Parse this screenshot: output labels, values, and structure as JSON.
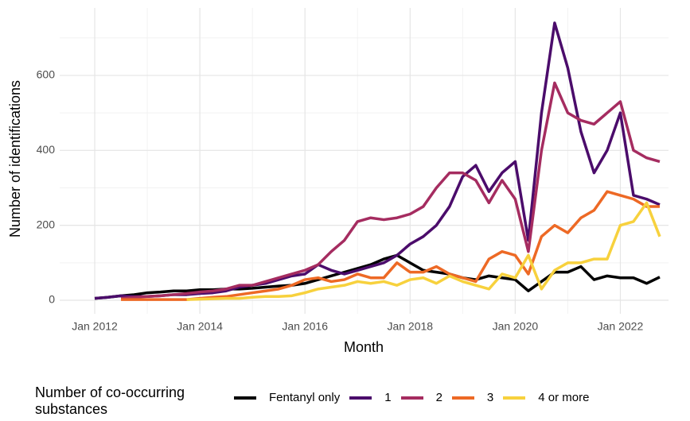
{
  "chart_data": {
    "type": "line",
    "xlabel": "Month",
    "ylabel": "Number of identifications",
    "legend_title": "Number of co-occurring substances",
    "legend": "bottom",
    "grid": true,
    "x": [
      "2012-01",
      "2012-04",
      "2012-07",
      "2012-10",
      "2013-01",
      "2013-04",
      "2013-07",
      "2013-10",
      "2014-01",
      "2014-04",
      "2014-07",
      "2014-10",
      "2015-01",
      "2015-04",
      "2015-07",
      "2015-10",
      "2016-01",
      "2016-04",
      "2016-07",
      "2016-10",
      "2017-01",
      "2017-04",
      "2017-07",
      "2017-10",
      "2018-01",
      "2018-04",
      "2018-07",
      "2018-10",
      "2019-01",
      "2019-04",
      "2019-07",
      "2019-10",
      "2020-01",
      "2020-04",
      "2020-07",
      "2020-10",
      "2021-01",
      "2021-04",
      "2021-07",
      "2021-10",
      "2022-01",
      "2022-04",
      "2022-07",
      "2022-10"
    ],
    "xlim": [
      "2011-05",
      "2022-12"
    ],
    "xticks": [
      {
        "value": "2012-01",
        "label": "Jan 2012"
      },
      {
        "value": "2014-01",
        "label": "Jan 2014"
      },
      {
        "value": "2016-01",
        "label": "Jan 2016"
      },
      {
        "value": "2018-01",
        "label": "Jan 2018"
      },
      {
        "value": "2020-01",
        "label": "Jan 2020"
      },
      {
        "value": "2022-01",
        "label": "Jan 2022"
      }
    ],
    "ylim": [
      -36,
      780
    ],
    "yticks": [
      0,
      200,
      400,
      600
    ],
    "series": [
      {
        "name": "Fentanyl only",
        "color": "#000000",
        "values": [
          5,
          8,
          12,
          15,
          20,
          22,
          25,
          25,
          28,
          28,
          30,
          30,
          32,
          35,
          38,
          40,
          45,
          55,
          65,
          75,
          85,
          95,
          110,
          120,
          100,
          80,
          75,
          70,
          60,
          55,
          65,
          60,
          55,
          25,
          50,
          75,
          75,
          90,
          55,
          65,
          60,
          60,
          45,
          62
        ]
      },
      {
        "name": "1",
        "color": "#4b0c6b",
        "values": [
          5,
          8,
          12,
          10,
          10,
          12,
          15,
          15,
          18,
          20,
          25,
          35,
          40,
          45,
          55,
          65,
          70,
          95,
          80,
          70,
          80,
          90,
          100,
          120,
          150,
          170,
          200,
          250,
          330,
          360,
          290,
          340,
          370,
          160,
          500,
          740,
          620,
          450,
          340,
          400,
          500,
          280,
          270,
          255
        ]
      },
      {
        "name": "2",
        "color": "#a52c60",
        "values": [
          null,
          null,
          5,
          8,
          10,
          12,
          15,
          18,
          22,
          25,
          30,
          40,
          40,
          50,
          60,
          70,
          80,
          95,
          130,
          160,
          210,
          220,
          215,
          220,
          230,
          250,
          300,
          340,
          340,
          320,
          260,
          320,
          270,
          130,
          400,
          580,
          500,
          480,
          470,
          500,
          530,
          400,
          380,
          370
        ]
      },
      {
        "name": "3",
        "color": "#ed6925",
        "values": [
          null,
          null,
          2,
          2,
          2,
          2,
          2,
          2,
          5,
          8,
          10,
          15,
          20,
          25,
          30,
          40,
          55,
          60,
          50,
          55,
          70,
          60,
          60,
          100,
          75,
          75,
          90,
          70,
          60,
          50,
          110,
          130,
          120,
          70,
          170,
          200,
          180,
          220,
          240,
          290,
          280,
          270,
          250,
          250
        ]
      },
      {
        "name": "4 or more",
        "color": "#f7d13d",
        "values": [
          null,
          null,
          null,
          null,
          null,
          null,
          null,
          2,
          3,
          4,
          5,
          5,
          8,
          10,
          10,
          12,
          20,
          30,
          35,
          40,
          50,
          45,
          50,
          40,
          55,
          60,
          45,
          65,
          50,
          40,
          30,
          70,
          60,
          120,
          30,
          80,
          100,
          100,
          110,
          110,
          200,
          210,
          260,
          170
        ]
      }
    ]
  }
}
